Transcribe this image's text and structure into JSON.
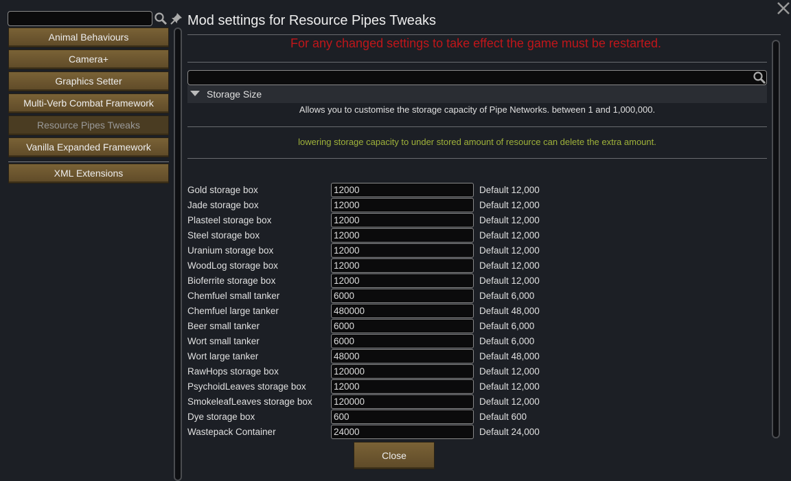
{
  "sidebar": {
    "search_value": "",
    "items": [
      {
        "label": "Animal Behaviours",
        "selected": false
      },
      {
        "label": "Camera+",
        "selected": false
      },
      {
        "label": "Graphics Setter",
        "selected": false
      },
      {
        "label": "Multi-Verb Combat Framework",
        "selected": false
      },
      {
        "label": "Resource Pipes Tweaks",
        "selected": true
      },
      {
        "label": "Vanilla Expanded Framework",
        "selected": false
      },
      {
        "label": "XML Extensions",
        "selected": false
      }
    ]
  },
  "header": {
    "title": "Mod settings for Resource Pipes Tweaks"
  },
  "warning": "For any changed settings to take effect the game must be restarted.",
  "settings_search_value": "",
  "section": {
    "title": "Storage Size",
    "expanded": true,
    "description": "Allows you to customise the storage capacity of Pipe Networks. between 1 and 1,000,000.",
    "note": "lowering storage capacity to under stored amount of resource can delete the extra amount."
  },
  "rows": [
    {
      "label": "Gold storage box",
      "value": "12000",
      "default": "Default 12,000"
    },
    {
      "label": "Jade storage box",
      "value": "12000",
      "default": "Default 12,000"
    },
    {
      "label": "Plasteel storage box",
      "value": "12000",
      "default": "Default 12,000"
    },
    {
      "label": "Steel storage box",
      "value": "12000",
      "default": "Default 12,000"
    },
    {
      "label": "Uranium storage box",
      "value": "12000",
      "default": "Default 12,000"
    },
    {
      "label": "WoodLog storage box",
      "value": "12000",
      "default": "Default 12,000"
    },
    {
      "label": "Bioferrite storage box",
      "value": "12000",
      "default": "Default 12,000"
    },
    {
      "label": "Chemfuel small tanker",
      "value": "6000",
      "default": "Default 6,000"
    },
    {
      "label": "Chemfuel large tanker",
      "value": "480000",
      "default": "Default 48,000"
    },
    {
      "label": "Beer small tanker",
      "value": "6000",
      "default": "Default 6,000"
    },
    {
      "label": "Wort small tanker",
      "value": "6000",
      "default": "Default 6,000"
    },
    {
      "label": "Wort large tanker",
      "value": "48000",
      "default": "Default 48,000"
    },
    {
      "label": "RawHops storage box",
      "value": "120000",
      "default": "Default 12,000"
    },
    {
      "label": "PsychoidLeaves storage box",
      "value": "12000",
      "default": "Default 12,000"
    },
    {
      "label": "SmokeleafLeaves storage box",
      "value": "120000",
      "default": "Default 12,000"
    },
    {
      "label": "Dye storage box",
      "value": "600",
      "default": "Default 600"
    },
    {
      "label": "Wastepack Container",
      "value": "24000",
      "default": "Default 24,000"
    }
  ],
  "close_label": "Close",
  "colors": {
    "warning": "#c0161a",
    "note": "#9fb23a",
    "button": "#6e5830"
  }
}
